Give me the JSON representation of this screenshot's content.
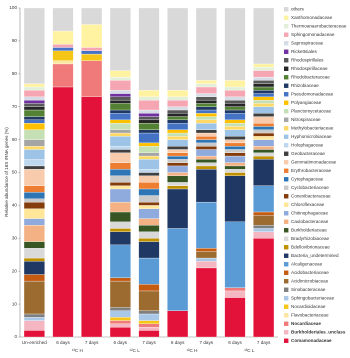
{
  "chart_data": {
    "type": "stacked-bar",
    "y_label": "Relative abundance of 16S rRNA genes (%)",
    "categories": [
      "Un-enriched",
      "6 days",
      "7 days",
      "6 days",
      "7 days",
      "6 days",
      "7 days",
      "6 days",
      "7 days"
    ],
    "groups": [
      "¹³C H",
      "¹²C L",
      "¹²C H",
      "¹³C L"
    ],
    "ylim": [
      0,
      100
    ],
    "yticks": [
      0,
      10,
      20,
      30,
      40,
      50,
      60,
      70,
      80,
      90,
      100
    ],
    "series": [
      {
        "name": "Comamonadaceae",
        "color": "#e3123a",
        "values": [
          2,
          76,
          73,
          3,
          2,
          8,
          21,
          12,
          30
        ]
      },
      {
        "name": "Burkholderiales_unclass",
        "color": "#f4b6c0",
        "values": [
          3,
          0,
          0,
          1,
          1,
          0,
          2,
          2,
          2
        ]
      },
      {
        "name": "Nocardiaceae",
        "color": "#f07a7a",
        "values": [
          0,
          7,
          11,
          1,
          1,
          0,
          0,
          1,
          0
        ]
      },
      {
        "name": "Flavobacteriaceae",
        "color": "#fbe7a1",
        "values": [
          0,
          1,
          0,
          0,
          0,
          0,
          0,
          0,
          0
        ]
      },
      {
        "name": "Nocardioidaceae",
        "color": "#f5c518",
        "values": [
          0,
          3,
          2,
          1,
          1,
          0,
          0,
          0,
          0
        ]
      },
      {
        "name": "Sphingobacteriaceae",
        "color": "#a9c8e8",
        "values": [
          1,
          0,
          0,
          2,
          2,
          0,
          1,
          0,
          1
        ]
      },
      {
        "name": "Sinobacteraceae",
        "color": "#7f7f7f",
        "values": [
          1,
          0,
          0,
          1,
          1,
          0,
          0,
          0,
          1
        ]
      },
      {
        "name": "Acidimicrobiaceae",
        "color": "#9c6b30",
        "values": [
          10,
          0,
          0,
          8,
          6,
          0,
          2,
          0,
          3
        ]
      },
      {
        "name": "Acidobacteriaceae",
        "color": "#c55a11",
        "values": [
          2,
          0,
          0,
          1,
          2,
          0,
          1,
          0,
          1
        ]
      },
      {
        "name": "Alcaligenaceae",
        "color": "#5b9bd5",
        "values": [
          0,
          0,
          0,
          10,
          8,
          25,
          14,
          20,
          8
        ]
      },
      {
        "name": "Bacteria_undetermined",
        "color": "#1f3864",
        "values": [
          4,
          0,
          0,
          4,
          5,
          12,
          10,
          14,
          8
        ]
      },
      {
        "name": "Bdellovibrionaceae",
        "color": "#bf9000",
        "values": [
          1,
          0,
          0,
          1,
          1,
          1,
          1,
          1,
          1
        ]
      },
      {
        "name": "Bradyrhizobiaceae",
        "color": "#d9d9d9",
        "values": [
          3,
          0,
          0,
          2,
          2,
          1,
          1,
          1,
          1
        ]
      },
      {
        "name": "Burkholderiaceae",
        "color": "#375623",
        "values": [
          2,
          0,
          0,
          3,
          2,
          2,
          1,
          1,
          1
        ]
      },
      {
        "name": "Caulobacteraceae",
        "color": "#f4b183",
        "values": [
          5,
          0,
          0,
          3,
          2,
          1,
          1,
          1,
          1
        ]
      },
      {
        "name": "Chitinophagaceae",
        "color": "#8faadc",
        "values": [
          2,
          0,
          0,
          4,
          3,
          2,
          2,
          2,
          2
        ]
      },
      {
        "name": "Chloroflexaceae",
        "color": "#ffe699",
        "values": [
          3,
          0,
          0,
          1,
          1,
          0,
          0,
          0,
          1
        ]
      },
      {
        "name": "Conexibacteraceae",
        "color": "#843c0c",
        "values": [
          2,
          0,
          0,
          1,
          1,
          1,
          1,
          1,
          1
        ]
      },
      {
        "name": "Cyclobacteriaceae",
        "color": "#c9c9c9",
        "values": [
          1,
          0,
          0,
          2,
          2,
          1,
          1,
          1,
          1
        ]
      },
      {
        "name": "Cytophagaceae",
        "color": "#2e75b6",
        "values": [
          2,
          0,
          0,
          2,
          2,
          1,
          1,
          1,
          1
        ]
      },
      {
        "name": "Erythrobacteraceae",
        "color": "#ed7d31",
        "values": [
          2,
          0,
          0,
          2,
          2,
          1,
          1,
          1,
          1
        ]
      },
      {
        "name": "Gemmatimonadaceae",
        "color": "#f8cbad",
        "values": [
          5,
          0,
          0,
          3,
          2,
          1,
          1,
          1,
          2
        ]
      },
      {
        "name": "Geobacteraceae",
        "color": "#404040",
        "values": [
          1,
          0,
          0,
          1,
          1,
          1,
          1,
          1,
          1
        ]
      },
      {
        "name": "Holophagaceae",
        "color": "#bdd7ee",
        "values": [
          2,
          0,
          0,
          1,
          1,
          0,
          0,
          0,
          0
        ]
      },
      {
        "name": "Hyphomicrobiaceae",
        "color": "#9dc3e6",
        "values": [
          3,
          0,
          0,
          3,
          3,
          2,
          2,
          2,
          2
        ]
      },
      {
        "name": "Methylobacteriaceae",
        "color": "#ffd966",
        "values": [
          1,
          0,
          0,
          1,
          1,
          1,
          1,
          1,
          1
        ]
      },
      {
        "name": "Nitrospiraceae",
        "color": "#a5a5a5",
        "values": [
          2,
          0,
          0,
          1,
          1,
          0,
          0,
          0,
          0
        ]
      },
      {
        "name": "Planctomycetaceae",
        "color": "#c5e0b4",
        "values": [
          3,
          0,
          0,
          2,
          2,
          1,
          1,
          1,
          1
        ]
      },
      {
        "name": "Polyangiaceae",
        "color": "#ffc000",
        "values": [
          2,
          0,
          0,
          1,
          1,
          1,
          1,
          1,
          1
        ]
      },
      {
        "name": "Pseudomonadaceae",
        "color": "#4472c4",
        "values": [
          1,
          1,
          1,
          2,
          3,
          2,
          1,
          2,
          1
        ]
      },
      {
        "name": "Rhizobiaceae",
        "color": "#203864",
        "values": [
          1,
          0,
          0,
          1,
          1,
          1,
          1,
          1,
          1
        ]
      },
      {
        "name": "Rhodobacteraceae",
        "color": "#548235",
        "values": [
          2,
          0,
          0,
          2,
          2,
          1,
          1,
          1,
          1
        ]
      },
      {
        "name": "Rhodospirillaceae",
        "color": "#262626",
        "values": [
          1,
          0,
          0,
          1,
          1,
          1,
          1,
          1,
          1
        ]
      },
      {
        "name": "Rhodospirillales",
        "color": "#595959",
        "values": [
          1,
          0,
          0,
          1,
          1,
          1,
          1,
          1,
          1
        ]
      },
      {
        "name": "Rickettsiales",
        "color": "#7030a0",
        "values": [
          1,
          0,
          0,
          1,
          1,
          0,
          0,
          0,
          0
        ]
      },
      {
        "name": "Saprospiraceae",
        "color": "#d6dce5",
        "values": [
          1,
          0,
          0,
          1,
          1,
          1,
          1,
          1,
          1
        ]
      },
      {
        "name": "Sphingomonadaceae",
        "color": "#f6a6b2",
        "values": [
          2,
          1,
          1,
          3,
          3,
          2,
          2,
          2,
          2
        ]
      },
      {
        "name": "Thermoanaerobacteraceae",
        "color": "#e2f0d9",
        "values": [
          1,
          0,
          0,
          1,
          1,
          1,
          1,
          1,
          1
        ]
      },
      {
        "name": "Xanthomonadaceae",
        "color": "#fff2a0",
        "values": [
          1,
          4,
          7,
          2,
          2,
          2,
          1,
          2,
          1
        ]
      },
      {
        "name": "others",
        "color": "#d9d9d9",
        "values": [
          23,
          7,
          5,
          19,
          25,
          25,
          22,
          22,
          17
        ]
      }
    ]
  }
}
